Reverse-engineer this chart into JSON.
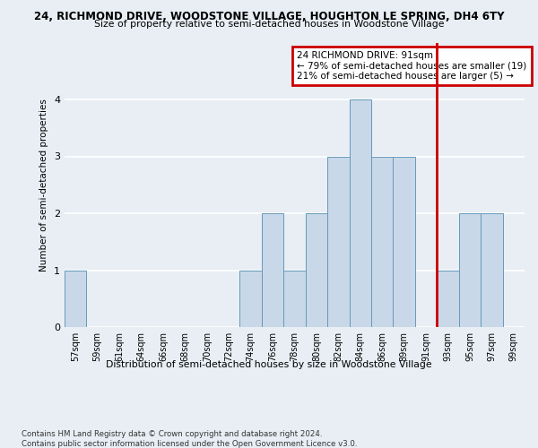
{
  "title1": "24, RICHMOND DRIVE, WOODSTONE VILLAGE, HOUGHTON LE SPRING, DH4 6TY",
  "title2": "Size of property relative to semi-detached houses in Woodstone Village",
  "xlabel": "Distribution of semi-detached houses by size in Woodstone Village",
  "ylabel": "Number of semi-detached properties",
  "footnote": "Contains HM Land Registry data © Crown copyright and database right 2024.\nContains public sector information licensed under the Open Government Licence v3.0.",
  "categories": [
    "57sqm",
    "59sqm",
    "61sqm",
    "64sqm",
    "66sqm",
    "68sqm",
    "70sqm",
    "72sqm",
    "74sqm",
    "76sqm",
    "78sqm",
    "80sqm",
    "82sqm",
    "84sqm",
    "86sqm",
    "89sqm",
    "91sqm",
    "93sqm",
    "95sqm",
    "97sqm",
    "99sqm"
  ],
  "values": [
    1,
    0,
    0,
    0,
    0,
    0,
    0,
    0,
    1,
    2,
    1,
    2,
    3,
    4,
    3,
    3,
    0,
    1,
    2,
    2,
    0
  ],
  "bar_color": "#c8d8e8",
  "bar_edge_color": "#6699bb",
  "highlight_line_color": "#cc0000",
  "annotation_text": "24 RICHMOND DRIVE: 91sqm\n← 79% of semi-detached houses are smaller (19)\n21% of semi-detached houses are larger (5) →",
  "annotation_box_color": "#cc0000",
  "ylim": [
    0,
    5
  ],
  "yticks": [
    0,
    1,
    2,
    3,
    4,
    5
  ],
  "background_color": "#e8eef4",
  "grid_color": "#ffffff"
}
